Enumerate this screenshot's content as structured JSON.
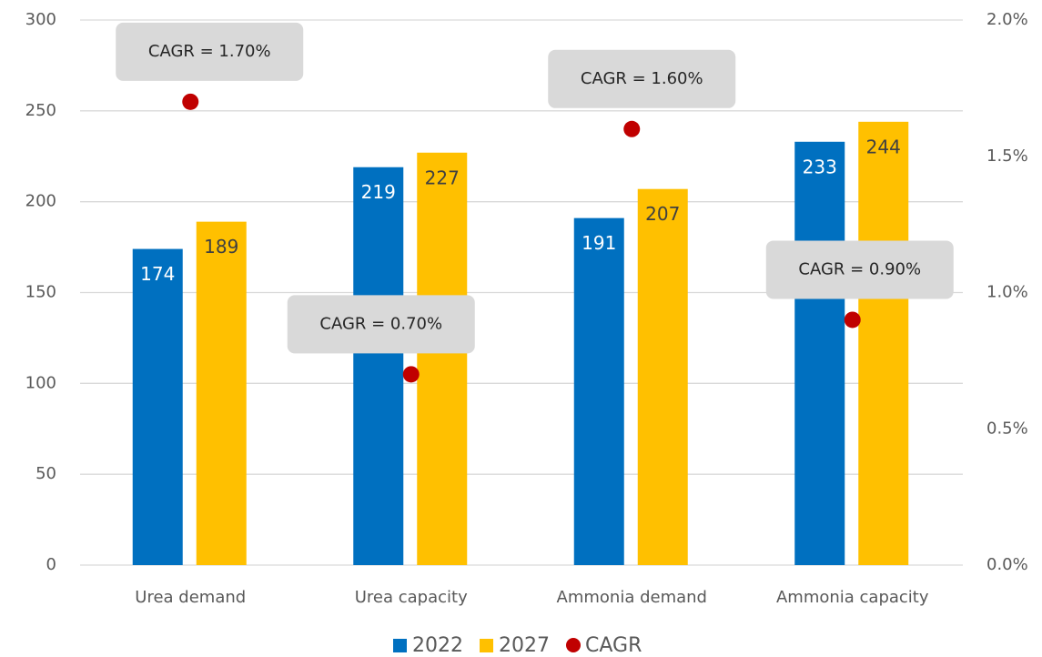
{
  "chart_data": {
    "type": "bar",
    "categories": [
      "Urea demand",
      "Urea capacity",
      "Ammonia demand",
      "Ammonia capacity"
    ],
    "series": [
      {
        "name": "2022",
        "color": "#0070c0",
        "values": [
          174,
          219,
          191,
          233
        ]
      },
      {
        "name": "2027",
        "color": "#ffc000",
        "values": [
          189,
          227,
          207,
          244
        ]
      },
      {
        "name": "CAGR",
        "color": "#c00000",
        "type": "scatter",
        "axis": "y2",
        "values": [
          1.7,
          0.7,
          1.6,
          0.9
        ],
        "value_labels": [
          "CAGR = 1.70%",
          "CAGR = 0.70%",
          "CAGR = 1.60%",
          "CAGR = 0.90%"
        ]
      }
    ],
    "ylim": [
      0,
      300
    ],
    "yticks": [
      0,
      50,
      100,
      150,
      200,
      250,
      300
    ],
    "y2lim": [
      0,
      2
    ],
    "y2ticks": [
      {
        "value": 0,
        "label": "0.0%"
      },
      {
        "value": 0.5,
        "label": "0.5%"
      },
      {
        "value": 1,
        "label": "1.0%"
      },
      {
        "value": 1.5,
        "label": "1.5%"
      },
      {
        "value": 2,
        "label": "2.0%"
      }
    ],
    "grid": true,
    "legend": "bottom"
  }
}
